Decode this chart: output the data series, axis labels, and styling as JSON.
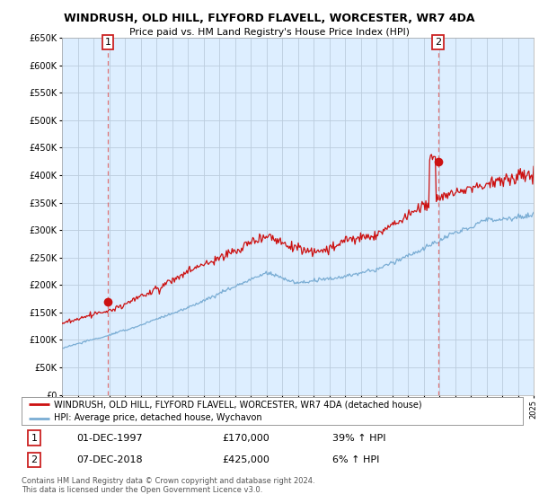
{
  "title": "WINDRUSH, OLD HILL, FLYFORD FLAVELL, WORCESTER, WR7 4DA",
  "subtitle": "Price paid vs. HM Land Registry's House Price Index (HPI)",
  "ylim": [
    0,
    650000
  ],
  "yticks": [
    0,
    50000,
    100000,
    150000,
    200000,
    250000,
    300000,
    350000,
    400000,
    450000,
    500000,
    550000,
    600000,
    650000
  ],
  "ytick_labels": [
    "£0",
    "£50K",
    "£100K",
    "£150K",
    "£200K",
    "£250K",
    "£300K",
    "£350K",
    "£400K",
    "£450K",
    "£500K",
    "£550K",
    "£600K",
    "£650K"
  ],
  "hpi_color": "#7aadd4",
  "price_color": "#cc1111",
  "vline_color": "#dd6666",
  "marker_color": "#cc1111",
  "chart_bg": "#ddeeff",
  "legend_label_price": "WINDRUSH, OLD HILL, FLYFORD FLAVELL, WORCESTER, WR7 4DA (detached house)",
  "legend_label_hpi": "HPI: Average price, detached house, Wychavon",
  "sale1_label": "1",
  "sale1_date": "01-DEC-1997",
  "sale1_price": "£170,000",
  "sale1_hpi": "39% ↑ HPI",
  "sale2_label": "2",
  "sale2_date": "07-DEC-2018",
  "sale2_price": "£425,000",
  "sale2_hpi": "6% ↑ HPI",
  "footer": "Contains HM Land Registry data © Crown copyright and database right 2024.\nThis data is licensed under the Open Government Licence v3.0.",
  "bg_color": "#ffffff",
  "grid_color": "#bbccdd",
  "sale1_x": 1997.917,
  "sale1_y": 170000,
  "sale2_x": 2018.917,
  "sale2_y": 425000,
  "xmin": 1995,
  "xmax": 2025
}
